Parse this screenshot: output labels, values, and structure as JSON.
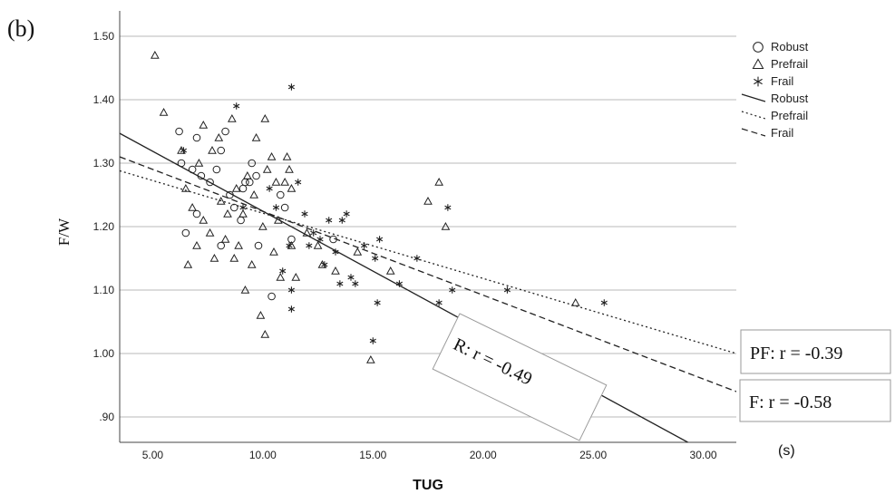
{
  "figure": {
    "panel_label": "(b)"
  },
  "chart_data": {
    "type": "scatter",
    "title": "",
    "xlabel": "TUG",
    "ylabel": "F/W",
    "x_unit_note": "(s)",
    "xlim": [
      3.5,
      31.5
    ],
    "ylim": [
      0.86,
      1.54
    ],
    "x_ticks": [
      5.0,
      10.0,
      15.0,
      20.0,
      25.0,
      30.0
    ],
    "x_tick_labels": [
      "5.00",
      "10.00",
      "15.00",
      "20.00",
      "25.00",
      "30.00"
    ],
    "y_ticks": [
      0.9,
      1.0,
      1.1,
      1.2,
      1.3,
      1.4,
      1.5
    ],
    "y_tick_labels": [
      ".90",
      "1.00",
      "1.10",
      "1.20",
      "1.30",
      "1.40",
      "1.50"
    ],
    "grid": {
      "horizontal": true,
      "vertical": false
    },
    "legend_position": "top-right",
    "legend": [
      {
        "label": "Robust",
        "symbol": "circle"
      },
      {
        "label": "Prefrail",
        "symbol": "triangle"
      },
      {
        "label": "Frail",
        "symbol": "star"
      },
      {
        "label": "Robust",
        "symbol": "solid-line"
      },
      {
        "label": "Prefrail",
        "symbol": "dotted-line"
      },
      {
        "label": "Frail",
        "symbol": "dashed-line"
      }
    ],
    "series": [
      {
        "name": "Robust",
        "marker": "circle",
        "points": [
          [
            6.2,
            1.35
          ],
          [
            6.3,
            1.3
          ],
          [
            6.5,
            1.19
          ],
          [
            6.8,
            1.29
          ],
          [
            7.0,
            1.34
          ],
          [
            7.0,
            1.22
          ],
          [
            7.2,
            1.28
          ],
          [
            7.6,
            1.27
          ],
          [
            7.9,
            1.29
          ],
          [
            8.1,
            1.32
          ],
          [
            8.1,
            1.17
          ],
          [
            8.3,
            1.35
          ],
          [
            8.5,
            1.25
          ],
          [
            8.7,
            1.23
          ],
          [
            9.0,
            1.21
          ],
          [
            9.1,
            1.26
          ],
          [
            9.2,
            1.27
          ],
          [
            9.4,
            1.27
          ],
          [
            9.5,
            1.3
          ],
          [
            9.7,
            1.28
          ],
          [
            9.8,
            1.17
          ],
          [
            10.4,
            1.09
          ],
          [
            10.8,
            1.25
          ],
          [
            11.0,
            1.23
          ],
          [
            11.3,
            1.18
          ],
          [
            13.2,
            1.18
          ]
        ]
      },
      {
        "name": "Prefrail",
        "marker": "triangle",
        "points": [
          [
            5.1,
            1.47
          ],
          [
            5.5,
            1.38
          ],
          [
            6.3,
            1.32
          ],
          [
            6.5,
            1.26
          ],
          [
            6.6,
            1.14
          ],
          [
            6.8,
            1.23
          ],
          [
            7.0,
            1.17
          ],
          [
            7.1,
            1.3
          ],
          [
            7.3,
            1.36
          ],
          [
            7.3,
            1.21
          ],
          [
            7.6,
            1.19
          ],
          [
            7.7,
            1.32
          ],
          [
            7.8,
            1.15
          ],
          [
            8.0,
            1.34
          ],
          [
            8.1,
            1.24
          ],
          [
            8.3,
            1.18
          ],
          [
            8.4,
            1.22
          ],
          [
            8.6,
            1.37
          ],
          [
            8.7,
            1.15
          ],
          [
            8.8,
            1.26
          ],
          [
            8.9,
            1.17
          ],
          [
            9.1,
            1.22
          ],
          [
            9.2,
            1.1
          ],
          [
            9.3,
            1.28
          ],
          [
            9.5,
            1.14
          ],
          [
            9.6,
            1.25
          ],
          [
            9.7,
            1.34
          ],
          [
            9.9,
            1.06
          ],
          [
            10.0,
            1.2
          ],
          [
            10.1,
            1.03
          ],
          [
            10.1,
            1.37
          ],
          [
            10.2,
            1.29
          ],
          [
            10.4,
            1.31
          ],
          [
            10.5,
            1.16
          ],
          [
            10.6,
            1.27
          ],
          [
            10.7,
            1.21
          ],
          [
            10.8,
            1.12
          ],
          [
            11.0,
            1.27
          ],
          [
            11.1,
            1.31
          ],
          [
            11.2,
            1.29
          ],
          [
            11.3,
            1.26
          ],
          [
            11.3,
            1.17
          ],
          [
            11.5,
            1.12
          ],
          [
            12.0,
            1.19
          ],
          [
            12.5,
            1.17
          ],
          [
            12.7,
            1.14
          ],
          [
            13.3,
            1.13
          ],
          [
            14.3,
            1.16
          ],
          [
            14.9,
            0.99
          ],
          [
            15.8,
            1.13
          ],
          [
            17.5,
            1.24
          ],
          [
            18.0,
            1.27
          ],
          [
            18.3,
            1.2
          ],
          [
            24.2,
            1.08
          ]
        ]
      },
      {
        "name": "Frail",
        "marker": "star",
        "points": [
          [
            6.4,
            1.32
          ],
          [
            8.8,
            1.39
          ],
          [
            9.1,
            1.23
          ],
          [
            10.3,
            1.26
          ],
          [
            10.6,
            1.23
          ],
          [
            10.9,
            1.13
          ],
          [
            11.2,
            1.17
          ],
          [
            11.3,
            1.42
          ],
          [
            11.3,
            1.1
          ],
          [
            11.3,
            1.07
          ],
          [
            11.6,
            1.27
          ],
          [
            11.9,
            1.22
          ],
          [
            12.1,
            1.17
          ],
          [
            12.3,
            1.19
          ],
          [
            12.6,
            1.18
          ],
          [
            12.8,
            1.14
          ],
          [
            13.0,
            1.21
          ],
          [
            13.3,
            1.16
          ],
          [
            13.5,
            1.11
          ],
          [
            13.6,
            1.21
          ],
          [
            13.8,
            1.22
          ],
          [
            14.0,
            1.12
          ],
          [
            14.2,
            1.11
          ],
          [
            14.6,
            1.17
          ],
          [
            15.0,
            1.02
          ],
          [
            15.1,
            1.15
          ],
          [
            15.2,
            1.08
          ],
          [
            15.3,
            1.18
          ],
          [
            16.2,
            1.11
          ],
          [
            17.0,
            1.15
          ],
          [
            18.0,
            1.08
          ],
          [
            18.4,
            1.23
          ],
          [
            18.6,
            1.1
          ],
          [
            21.1,
            1.1
          ],
          [
            25.5,
            1.08
          ]
        ]
      }
    ],
    "fit_lines": [
      {
        "name": "Robust",
        "style": "solid",
        "x": [
          3.5,
          29.3
        ],
        "y": [
          1.347,
          0.86
        ],
        "label": "R: r = -0.49"
      },
      {
        "name": "Prefrail",
        "style": "dotted",
        "x": [
          3.5,
          31.5
        ],
        "y": [
          1.288,
          1.0
        ],
        "label": "PF: r = -0.39"
      },
      {
        "name": "Frail",
        "style": "dashed",
        "x": [
          3.5,
          31.5
        ],
        "y": [
          1.31,
          0.94
        ],
        "label": "F: r = -0.58"
      }
    ]
  }
}
